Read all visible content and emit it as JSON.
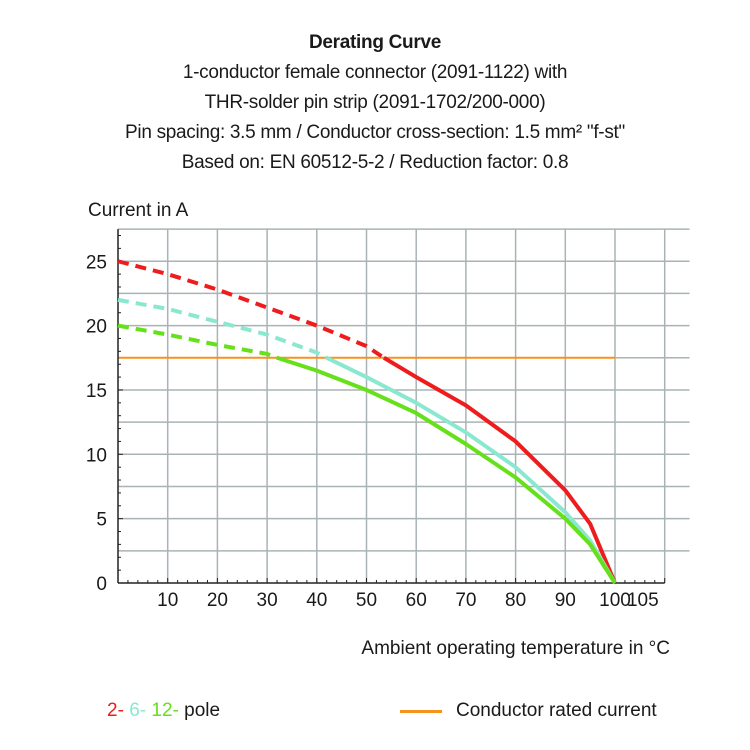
{
  "chart_data": {
    "type": "line",
    "title": "Derating Curve",
    "subtitle": [
      "1-conductor female connector (2091-1122) with",
      "THR-solder pin strip (2091-1702/200-000)",
      "Pin spacing: 3.5 mm / Conductor cross-section: 1.5 mm² \"f-st\"",
      "Based on: EN 60512-5-2 / Reduction factor: 0.8"
    ],
    "xlabel": "Ambient operating temperature in °C",
    "ylabel": "Current in A",
    "xlim": [
      0,
      115
    ],
    "ylim": [
      0,
      27.5
    ],
    "xticks": [
      10,
      20,
      30,
      40,
      50,
      60,
      70,
      80,
      90,
      100,
      105
    ],
    "yticks": [
      0,
      5,
      10,
      15,
      20,
      25
    ],
    "grid": true,
    "rated_current": 17.5,
    "series": [
      {
        "name": "2-",
        "color": "#ee1c1c",
        "x": [
          0,
          10,
          20,
          30,
          40,
          50,
          53.5,
          60,
          70,
          80,
          90,
          95,
          100
        ],
        "y": [
          25,
          24,
          22.8,
          21.4,
          20,
          18.4,
          17.5,
          16,
          13.8,
          11,
          7.2,
          4.6,
          0
        ]
      },
      {
        "name": "6-",
        "color": "#8ae8d0",
        "x": [
          0,
          10,
          20,
          30,
          40,
          42,
          50,
          60,
          70,
          80,
          90,
          95,
          100
        ],
        "y": [
          22,
          21.3,
          20.3,
          19.3,
          17.9,
          17.5,
          16,
          14,
          11.7,
          9,
          5.5,
          3.3,
          0
        ]
      },
      {
        "name": "12-",
        "color": "#66e01a",
        "x": [
          0,
          10,
          20,
          30,
          32,
          40,
          50,
          60,
          70,
          80,
          90,
          95,
          100
        ],
        "y": [
          20,
          19.3,
          18.5,
          17.8,
          17.5,
          16.5,
          15,
          13.2,
          10.8,
          8.2,
          5,
          3,
          0
        ]
      }
    ],
    "legend": {
      "pole_suffix": "pole",
      "rated_label": "Conductor rated current",
      "rated_color": "#f7921e"
    }
  }
}
